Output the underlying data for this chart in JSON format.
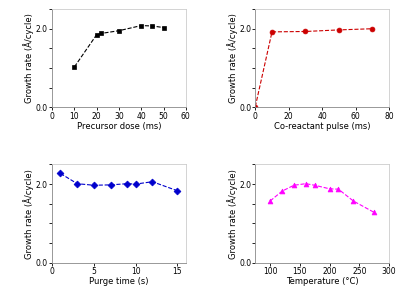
{
  "panel_a": {
    "x": [
      10,
      20,
      22,
      30,
      40,
      45,
      50
    ],
    "y": [
      1.03,
      1.85,
      1.88,
      1.95,
      2.08,
      2.07,
      2.03
    ],
    "color": "black",
    "marker": "s",
    "xlabel": "Precursor dose (ms)",
    "ylabel": "Growth rate (Å/cycle)",
    "xlim": [
      0,
      60
    ],
    "ylim": [
      0,
      2.5
    ],
    "xticks": [
      0,
      10,
      20,
      30,
      40,
      50,
      60
    ],
    "yticks": [
      0.0,
      0.5,
      1.0,
      1.5,
      2.0,
      2.5
    ],
    "ytick_labels": [
      "0.0",
      "",
      "",
      "",
      "2.0",
      ""
    ]
  },
  "panel_b": {
    "x": [
      0,
      10,
      30,
      50,
      70
    ],
    "y": [
      0.02,
      1.92,
      1.93,
      1.97,
      2.0
    ],
    "color": "#cc0000",
    "marker": "o",
    "xlabel": "Co-reactant pulse (ms)",
    "ylabel": "Growth rate (Å/cycle)",
    "xlim": [
      0,
      80
    ],
    "ylim": [
      0,
      2.5
    ],
    "xticks": [
      0,
      20,
      40,
      60,
      80
    ],
    "yticks": [
      0.0,
      0.5,
      1.0,
      1.5,
      2.0,
      2.5
    ],
    "ytick_labels": [
      "0.0",
      "",
      "",
      "",
      "2.0",
      ""
    ]
  },
  "panel_c": {
    "x": [
      1,
      3,
      5,
      7,
      9,
      10,
      12,
      15
    ],
    "y": [
      2.27,
      2.01,
      1.97,
      1.98,
      2.01,
      2.0,
      2.06,
      1.83
    ],
    "color": "#0000cc",
    "marker": "D",
    "xlabel": "Purge time (s)",
    "ylabel": "Growth rate (Å/cycle)",
    "xlim": [
      0,
      16
    ],
    "ylim": [
      0,
      2.5
    ],
    "xticks": [
      0,
      5,
      10,
      15
    ],
    "yticks": [
      0.0,
      0.5,
      1.0,
      1.5,
      2.0,
      2.5
    ],
    "ytick_labels": [
      "0.0",
      "",
      "",
      "",
      "2.0",
      ""
    ]
  },
  "panel_d": {
    "x": [
      100,
      120,
      140,
      160,
      175,
      200,
      215,
      240,
      275
    ],
    "y": [
      1.57,
      1.82,
      1.97,
      2.01,
      1.97,
      1.88,
      1.87,
      1.57,
      1.28
    ],
    "color": "#ff00ff",
    "marker": "^",
    "xlabel": "Temperature (°C)",
    "ylabel": "Growth rate (Å/cycle)",
    "xlim": [
      75,
      300
    ],
    "ylim": [
      0,
      2.5
    ],
    "xticks": [
      100,
      150,
      200,
      250,
      300
    ],
    "yticks": [
      0.0,
      0.5,
      1.0,
      1.5,
      2.0,
      2.5
    ],
    "ytick_labels": [
      "0.0",
      "",
      "",
      "",
      "2.0",
      ""
    ]
  }
}
